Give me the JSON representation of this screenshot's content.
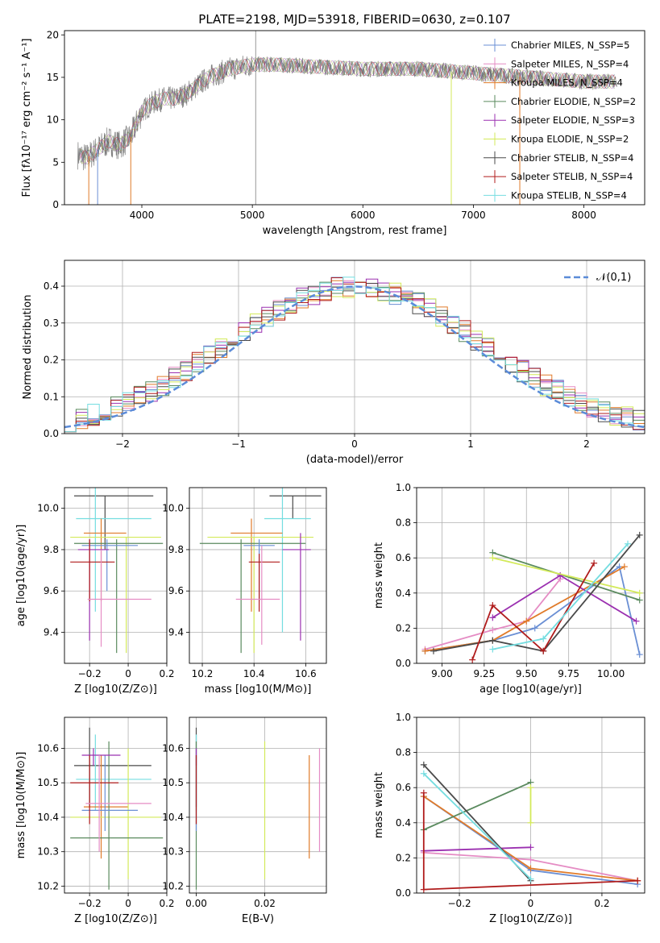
{
  "chart_data": [
    {
      "id": "spectrum",
      "type": "line",
      "title": "PLATE=2198, MJD=53918, FIBERID=0630, z=0.107",
      "xlabel": "wavelength [Angstrom, rest frame]",
      "ylabel": "Flux [fλ10⁻¹⁷ erg cm⁻² s⁻¹ A⁻¹]",
      "xlim": [
        3300,
        8550
      ],
      "ylim": [
        0,
        20.5
      ],
      "xticks": [
        4000,
        5000,
        6000,
        7000,
        8000
      ],
      "yticks": [
        0,
        5,
        10,
        15,
        20
      ],
      "legend_position": "right",
      "series": [
        {
          "name": "Chabrier MILES, N_SSP=5",
          "color": "#6a8fd4"
        },
        {
          "name": "Salpeter MILES, N_SSP=4",
          "color": "#e58cc4"
        },
        {
          "name": "Kroupa MILES, N_SSP=4",
          "color": "#e07b2a"
        },
        {
          "name": "Chabrier ELODIE, N_SSP=2",
          "color": "#5a8a5e"
        },
        {
          "name": "Salpeter ELODIE, N_SSP=3",
          "color": "#9b30b0"
        },
        {
          "name": "Kroupa ELODIE, N_SSP=2",
          "color": "#d3ea5a"
        },
        {
          "name": "Chabrier STELIB, N_SSP=4",
          "color": "#4a4a4a"
        },
        {
          "name": "Salpeter STELIB, N_SSP=4",
          "color": "#b01c1c"
        },
        {
          "name": "Kroupa STELIB, N_SSP=4",
          "color": "#74dde0"
        }
      ],
      "data_color": "#808080",
      "continuum_points": {
        "x": [
          3400,
          3500,
          3600,
          3700,
          3800,
          3900,
          4000,
          4100,
          4200,
          4300,
          4400,
          4500,
          4600,
          4800,
          5000,
          5200,
          5500,
          6000,
          6500,
          7000,
          7500,
          8000,
          8300
        ],
        "y": [
          6,
          5.5,
          6.5,
          7.5,
          7,
          8,
          11,
          12,
          12.5,
          12.5,
          13,
          14,
          15,
          16,
          16.5,
          16.5,
          16.3,
          16,
          16,
          15.5,
          15,
          14.5,
          14.5
        ]
      }
    },
    {
      "id": "residuals",
      "type": "histogram",
      "xlabel": "(data-model)/error",
      "ylabel": "Normed distribution",
      "xlim": [
        -2.5,
        2.5
      ],
      "ylim": [
        0,
        0.47
      ],
      "xticks": [
        -2,
        -1,
        0,
        1,
        2
      ],
      "yticks": [
        0.0,
        0.1,
        0.2,
        0.3,
        0.4
      ],
      "legend": "𝒩(0,1)",
      "gaussian_color": "#5b8bd8",
      "bin_width": 0.1
    },
    {
      "id": "age_vs_Z",
      "type": "scatter",
      "xlabel": "Z [log10(Z/Z⊙)]",
      "ylabel": "age [log10(age/yr)]",
      "xlim": [
        -0.33,
        0.2
      ],
      "ylim": [
        9.25,
        10.1
      ],
      "xticks": [
        -0.2,
        0.0,
        0.2
      ],
      "yticks": [
        9.4,
        9.6,
        9.8,
        10.0
      ]
    },
    {
      "id": "age_vs_mass",
      "type": "scatter",
      "xlabel": "mass [log10(M/M⊙)]",
      "xlim": [
        10.15,
        10.68
      ],
      "ylim": [
        9.25,
        10.1
      ],
      "xticks": [
        10.2,
        10.4,
        10.6
      ],
      "yticks": [
        9.4,
        9.6,
        9.8,
        10.0
      ]
    },
    {
      "id": "weight_vs_age",
      "type": "line",
      "xlabel": "age [log10(age/yr)]",
      "ylabel": "mass weight",
      "xlim": [
        8.85,
        10.2
      ],
      "ylim": [
        0,
        1
      ],
      "xticks": [
        9.0,
        9.25,
        9.5,
        9.75,
        10.0
      ],
      "yticks": [
        0.0,
        0.2,
        0.4,
        0.6,
        0.8,
        1.0
      ],
      "series": [
        {
          "color": "#6a8fd4",
          "x": [
            8.9,
            9.3,
            9.55,
            10.05,
            10.17
          ],
          "y": [
            0.07,
            0.13,
            0.2,
            0.55,
            0.05
          ]
        },
        {
          "color": "#e58cc4",
          "x": [
            8.9,
            9.3,
            9.5,
            9.7
          ],
          "y": [
            0.08,
            0.19,
            0.24,
            0.48
          ]
        },
        {
          "color": "#e07b2a",
          "x": [
            8.9,
            9.3,
            9.5,
            10.08
          ],
          "y": [
            0.07,
            0.13,
            0.24,
            0.55
          ]
        },
        {
          "color": "#5a8a5e",
          "x": [
            9.3,
            10.17
          ],
          "y": [
            0.63,
            0.36
          ]
        },
        {
          "color": "#9b30b0",
          "x": [
            9.3,
            9.7,
            10.15
          ],
          "y": [
            0.26,
            0.5,
            0.24
          ]
        },
        {
          "color": "#d3ea5a",
          "x": [
            9.3,
            10.17
          ],
          "y": [
            0.6,
            0.4
          ]
        },
        {
          "color": "#4a4a4a",
          "x": [
            8.95,
            9.3,
            9.6,
            10.17
          ],
          "y": [
            0.07,
            0.13,
            0.07,
            0.73
          ]
        },
        {
          "color": "#b01c1c",
          "x": [
            9.18,
            9.3,
            9.6,
            9.9
          ],
          "y": [
            0.02,
            0.33,
            0.07,
            0.57
          ]
        },
        {
          "color": "#74dde0",
          "x": [
            9.3,
            9.6,
            10.1
          ],
          "y": [
            0.08,
            0.14,
            0.68
          ]
        }
      ]
    },
    {
      "id": "mass_vs_Z",
      "type": "scatter",
      "xlabel": "Z [log10(Z/Z⊙)]",
      "ylabel": "mass [log10(M/M⊙)]",
      "xlim": [
        -0.33,
        0.2
      ],
      "ylim": [
        10.18,
        10.69
      ],
      "xticks": [
        -0.2,
        0.0,
        0.2
      ],
      "yticks": [
        10.2,
        10.3,
        10.4,
        10.5,
        10.6
      ]
    },
    {
      "id": "mass_vs_ebv",
      "type": "scatter",
      "xlabel": "E(B-V)",
      "xlim": [
        -0.002,
        0.038
      ],
      "ylim": [
        10.18,
        10.69
      ],
      "xticks": [
        0.0,
        0.02
      ],
      "yticks": [
        10.2,
        10.3,
        10.4,
        10.5,
        10.6
      ]
    },
    {
      "id": "weight_vs_Z",
      "type": "line",
      "xlabel": "Z [log10(Z/Z⊙)]",
      "ylabel": "mass weight",
      "xlim": [
        -0.32,
        0.32
      ],
      "ylim": [
        0,
        1
      ],
      "xticks": [
        -0.2,
        0.0,
        0.2
      ],
      "yticks": [
        0.0,
        0.2,
        0.4,
        0.6,
        0.8,
        1.0
      ],
      "series": [
        {
          "color": "#6a8fd4",
          "x": [
            -0.3,
            0.0,
            0.3
          ],
          "y": [
            0.55,
            0.13,
            0.05
          ]
        },
        {
          "color": "#e58cc4",
          "x": [
            -0.3,
            0.0,
            0.3
          ],
          "y": [
            0.23,
            0.19,
            0.07
          ]
        },
        {
          "color": "#e07b2a",
          "x": [
            -0.3,
            0.0,
            0.3
          ],
          "y": [
            0.55,
            0.14,
            0.07
          ]
        },
        {
          "color": "#5a8a5e",
          "x": [
            -0.3,
            0.0
          ],
          "y": [
            0.36,
            0.63
          ]
        },
        {
          "color": "#9b30b0",
          "x": [
            -0.3,
            0.0
          ],
          "y": [
            0.24,
            0.26
          ]
        },
        {
          "color": "#d3ea5a",
          "x": [
            0.0,
            0.0
          ],
          "y": [
            0.6,
            0.4
          ]
        },
        {
          "color": "#4a4a4a",
          "x": [
            -0.3,
            0.0
          ],
          "y": [
            0.73,
            0.07
          ]
        },
        {
          "color": "#b01c1c",
          "x": [
            -0.3,
            -0.3,
            0.3
          ],
          "y": [
            0.57,
            0.02,
            0.07
          ]
        },
        {
          "color": "#74dde0",
          "x": [
            -0.3,
            0.0
          ],
          "y": [
            0.68,
            0.08
          ]
        }
      ]
    }
  ]
}
